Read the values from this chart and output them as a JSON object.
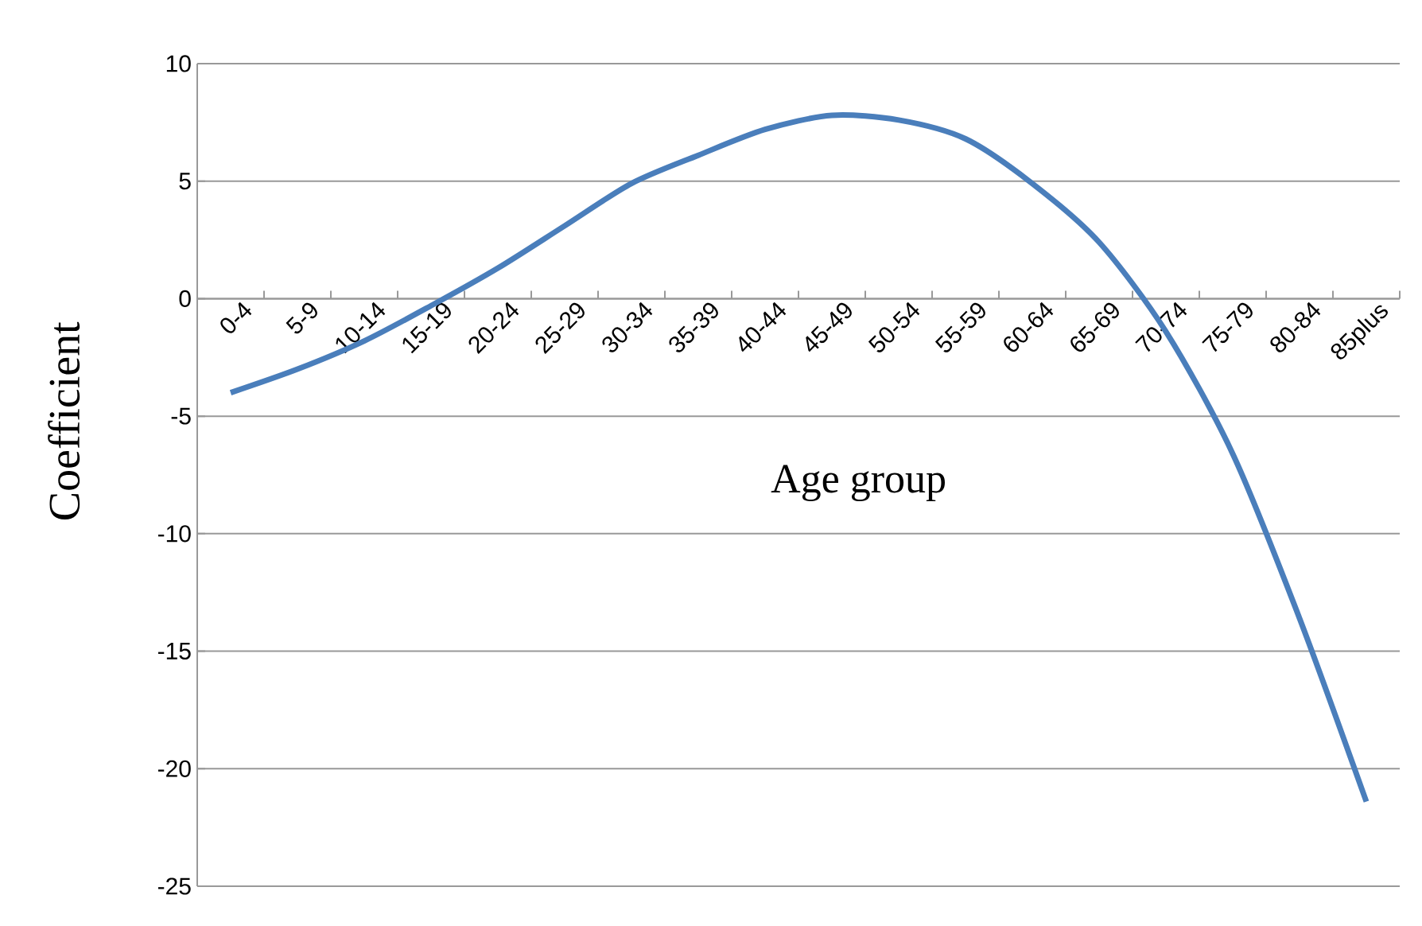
{
  "chart_data": {
    "type": "line",
    "xlabel": "Age group",
    "ylabel": "Coefficient",
    "categories": [
      "0-4",
      "5-9",
      "10-14",
      "15-19",
      "20-24",
      "25-29",
      "30-34",
      "35-39",
      "40-44",
      "45-49",
      "50-54",
      "55-59",
      "60-64",
      "65-69",
      "70-74",
      "75-79",
      "80-84",
      "85plus"
    ],
    "series": [
      {
        "color": "#4a7ebb",
        "values": [
          -4.0,
          -3.0,
          -1.8,
          -0.3,
          1.3,
          3.1,
          4.9,
          6.1,
          7.2,
          7.8,
          7.6,
          6.8,
          4.9,
          2.4,
          -1.4,
          -6.6,
          -13.6,
          -21.4
        ]
      }
    ],
    "ylim": [
      -25,
      10
    ],
    "yticks": [
      -25,
      -20,
      -15,
      -10,
      -5,
      0,
      5,
      10
    ],
    "grid": "y",
    "marker": "none",
    "line_style": "solid"
  }
}
